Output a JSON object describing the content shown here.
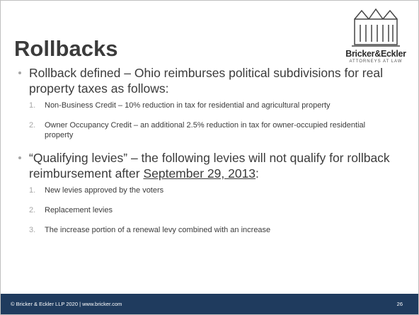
{
  "header": {
    "title": "Rollbacks",
    "logo": {
      "name": "Bricker&Eckler",
      "tagline": "ATTORNEYS AT LAW"
    }
  },
  "bullets": [
    {
      "text": "Rollback defined – Ohio reimburses political subdivisions for real property taxes as follows:",
      "items": [
        {
          "number": "1.",
          "text": "Non-Business Credit – 10% reduction in tax for residential and agricultural property"
        },
        {
          "number": "2.",
          "text": "Owner Occupancy Credit – an additional 2.5% reduction in tax for owner-occupied residential property"
        }
      ]
    },
    {
      "text": "“Qualifying levies” – the following levies will not qualify for rollback reimbursement after ",
      "underlined": "September 29, 2013",
      "tail": ":",
      "items": [
        {
          "number": "1.",
          "text": "New levies approved by the voters"
        },
        {
          "number": "2.",
          "text": "Replacement levies"
        },
        {
          "number": "3.",
          "text": "The increase portion of a renewal levy combined with an increase"
        }
      ]
    }
  ],
  "footer": {
    "left": "© Bricker & Eckler LLP 2020 | www.bricker.com",
    "page": "26"
  }
}
